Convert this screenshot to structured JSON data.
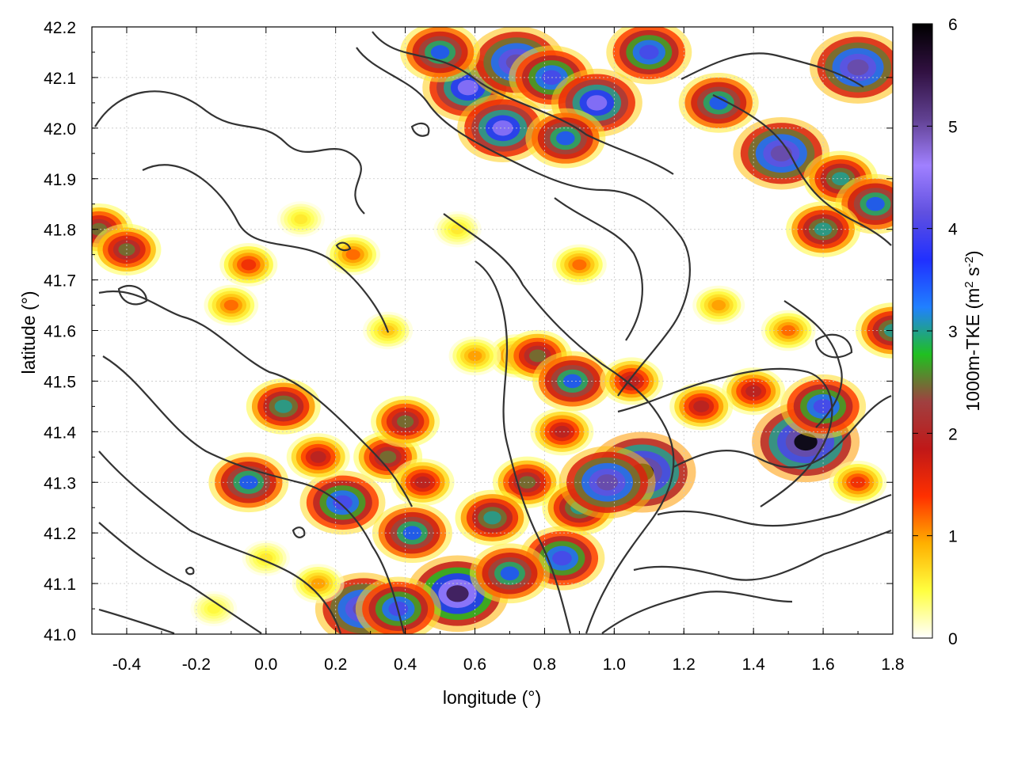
{
  "chart_data": {
    "type": "heatmap",
    "title": "",
    "xlabel": "longitude (°)",
    "ylabel": "latitude (°)",
    "xlim": [
      -0.5,
      1.8
    ],
    "ylim": [
      41.0,
      42.2
    ],
    "x_ticks": [
      "-0.4",
      "-0.2",
      "0.0",
      "0.2",
      "0.4",
      "0.6",
      "0.8",
      "1.0",
      "1.2",
      "1.4",
      "1.6",
      "1.8"
    ],
    "x_tick_values": [
      -0.4,
      -0.2,
      0.0,
      0.2,
      0.4,
      0.6,
      0.8,
      1.0,
      1.2,
      1.4,
      1.6,
      1.8
    ],
    "y_ticks": [
      "41.0",
      "41.1",
      "41.2",
      "41.3",
      "41.4",
      "41.5",
      "41.6",
      "41.7",
      "41.8",
      "41.9",
      "42.0",
      "42.1",
      "42.2"
    ],
    "y_tick_values": [
      41.0,
      41.1,
      41.2,
      41.3,
      41.4,
      41.5,
      41.6,
      41.7,
      41.8,
      41.9,
      42.0,
      42.1,
      42.2
    ],
    "grid": true,
    "colorbar": {
      "label_main": "1000m-TKE (m",
      "label_sup1": "2",
      "label_mid": " s",
      "label_sup2": "-2",
      "label_end": ")",
      "range": [
        0,
        6
      ],
      "ticks": [
        "0",
        "1",
        "2",
        "3",
        "4",
        "5",
        "6"
      ],
      "tick_values": [
        0,
        1,
        2,
        3,
        4,
        5,
        6
      ],
      "colors": [
        "#ffffff",
        "#ffff40",
        "#ffb000",
        "#ff3000",
        "#c01818",
        "#a04040",
        "#20c020",
        "#2080ff",
        "#2030ff",
        "#6050e0",
        "#a080ff",
        "#604090",
        "#301040",
        "#000000"
      ]
    },
    "hotspots": [
      {
        "lon": 0.58,
        "lat": 42.08,
        "tke": 4.5
      },
      {
        "lon": 0.72,
        "lat": 42.13,
        "tke": 5.0
      },
      {
        "lon": 0.82,
        "lat": 42.1,
        "tke": 4.0
      },
      {
        "lon": 0.95,
        "lat": 42.05,
        "tke": 4.5
      },
      {
        "lon": 0.68,
        "lat": 42.0,
        "tke": 4.5
      },
      {
        "lon": 0.86,
        "lat": 41.98,
        "tke": 3.5
      },
      {
        "lon": 0.5,
        "lat": 42.15,
        "tke": 3.5
      },
      {
        "lon": 1.1,
        "lat": 42.15,
        "tke": 4.0
      },
      {
        "lon": 1.3,
        "lat": 42.05,
        "tke": 3.5
      },
      {
        "lon": 1.48,
        "lat": 41.95,
        "tke": 5.0
      },
      {
        "lon": 1.65,
        "lat": 41.9,
        "tke": 3.0
      },
      {
        "lon": 1.75,
        "lat": 41.85,
        "tke": 3.5
      },
      {
        "lon": 1.6,
        "lat": 41.8,
        "tke": 3.0
      },
      {
        "lon": 1.7,
        "lat": 42.12,
        "tke": 5.0
      },
      {
        "lon": 1.8,
        "lat": 41.6,
        "tke": 3.0
      },
      {
        "lon": -0.48,
        "lat": 41.8,
        "tke": 2.5
      },
      {
        "lon": -0.4,
        "lat": 41.76,
        "tke": 2.5
      },
      {
        "lon": -0.05,
        "lat": 41.73,
        "tke": 1.5
      },
      {
        "lon": -0.1,
        "lat": 41.65,
        "tke": 1.2
      },
      {
        "lon": 0.25,
        "lat": 41.75,
        "tke": 1.2
      },
      {
        "lon": 0.05,
        "lat": 41.45,
        "tke": 3.0
      },
      {
        "lon": -0.05,
        "lat": 41.3,
        "tke": 3.5
      },
      {
        "lon": 0.22,
        "lat": 41.26,
        "tke": 4.0
      },
      {
        "lon": 0.35,
        "lat": 41.35,
        "tke": 2.5
      },
      {
        "lon": 0.4,
        "lat": 41.42,
        "tke": 2.5
      },
      {
        "lon": 0.42,
        "lat": 41.2,
        "tke": 3.5
      },
      {
        "lon": 0.55,
        "lat": 41.08,
        "tke": 5.5
      },
      {
        "lon": 0.28,
        "lat": 41.05,
        "tke": 5.0
      },
      {
        "lon": 0.38,
        "lat": 41.05,
        "tke": 4.0
      },
      {
        "lon": 0.45,
        "lat": 41.3,
        "tke": 2.0
      },
      {
        "lon": 0.72,
        "lat": 41.55,
        "tke": 1.5
      },
      {
        "lon": 0.78,
        "lat": 41.55,
        "tke": 2.5
      },
      {
        "lon": 0.88,
        "lat": 41.5,
        "tke": 3.5
      },
      {
        "lon": 0.85,
        "lat": 41.4,
        "tke": 2.0
      },
      {
        "lon": 0.75,
        "lat": 41.3,
        "tke": 2.5
      },
      {
        "lon": 0.9,
        "lat": 41.25,
        "tke": 3.0
      },
      {
        "lon": 1.08,
        "lat": 41.32,
        "tke": 6.0
      },
      {
        "lon": 0.98,
        "lat": 41.3,
        "tke": 5.0
      },
      {
        "lon": 0.85,
        "lat": 41.15,
        "tke": 4.0
      },
      {
        "lon": 0.7,
        "lat": 41.12,
        "tke": 3.5
      },
      {
        "lon": 0.65,
        "lat": 41.23,
        "tke": 3.0
      },
      {
        "lon": 0.9,
        "lat": 41.73,
        "tke": 1.2
      },
      {
        "lon": 1.55,
        "lat": 41.38,
        "tke": 6.0
      },
      {
        "lon": 1.6,
        "lat": 41.45,
        "tke": 4.0
      },
      {
        "lon": 1.4,
        "lat": 41.48,
        "tke": 2.0
      },
      {
        "lon": 1.25,
        "lat": 41.45,
        "tke": 2.0
      },
      {
        "lon": 1.05,
        "lat": 41.5,
        "tke": 2.0
      },
      {
        "lon": 1.7,
        "lat": 41.3,
        "tke": 1.5
      },
      {
        "lon": 0.15,
        "lat": 41.35,
        "tke": 2.0
      },
      {
        "lon": 0.6,
        "lat": 41.55,
        "tke": 1.0
      },
      {
        "lon": 0.35,
        "lat": 41.6,
        "tke": 0.8
      },
      {
        "lon": 0.1,
        "lat": 41.82,
        "tke": 0.6
      },
      {
        "lon": 0.55,
        "lat": 41.8,
        "tke": 0.6
      },
      {
        "lon": 1.3,
        "lat": 41.65,
        "tke": 1.0
      },
      {
        "lon": 1.5,
        "lat": 41.6,
        "tke": 1.2
      },
      {
        "lon": 0.0,
        "lat": 41.15,
        "tke": 0.6
      },
      {
        "lon": -0.15,
        "lat": 41.05,
        "tke": 0.5
      },
      {
        "lon": 0.15,
        "lat": 41.1,
        "tke": 1.0
      }
    ]
  }
}
